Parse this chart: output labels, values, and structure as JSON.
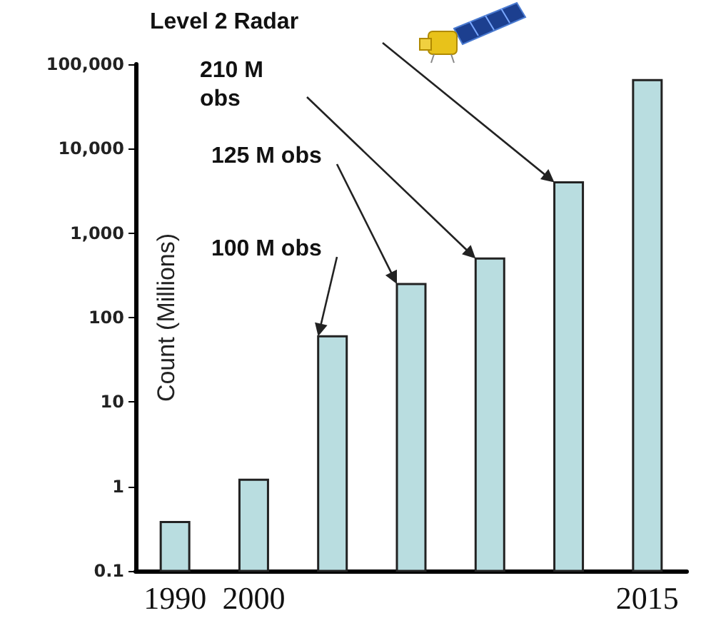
{
  "chart_data": {
    "type": "bar",
    "categories": [
      "1990",
      "2000",
      null,
      null,
      null,
      null,
      "2015"
    ],
    "values": [
      0.38,
      1.2,
      60,
      250,
      500,
      4000,
      65000
    ],
    "color": "#b9dde0",
    "ylabel": "Count (Millions)",
    "log": true,
    "ylim": [
      0.1,
      100000
    ],
    "yticks": [
      0.1,
      1,
      10,
      100,
      {
        "value": 1000,
        "label": "1,000"
      },
      {
        "value": 10000,
        "label": "10,000"
      },
      {
        "value": 100000,
        "label": "100,000"
      }
    ],
    "annotations": [
      "Level 2 Radar",
      "210 M obs",
      "125 M obs",
      "100 M obs"
    ],
    "grid": false
  }
}
